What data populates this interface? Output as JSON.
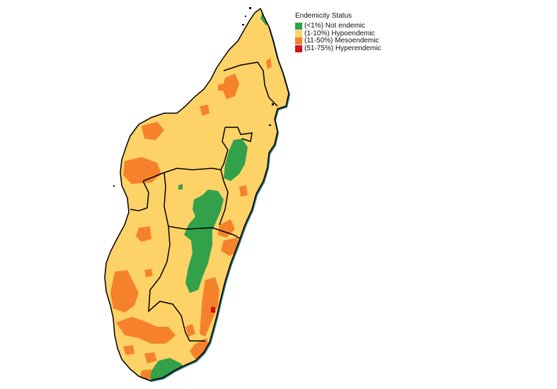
{
  "map": {
    "subject": "Madagascar",
    "colors": {
      "not_endemic": "#33a04a",
      "hypoendemic": "#fdd267",
      "mesoendemic": "#f5822a",
      "hyperendemic": "#d50f1c",
      "border": "#000000",
      "coast_shadow": "#2b6e7a"
    }
  },
  "legend": {
    "title": "Endemicity Status",
    "items": [
      {
        "label": "(<1%) Not endemic",
        "color": "#33a04a"
      },
      {
        "label": "(1-10%) Hypoendemic",
        "color": "#fdd267"
      },
      {
        "label": "(11-50%) Mesoendemic",
        "color": "#f5822a"
      },
      {
        "label": "(51-75%) Hyperendemic",
        "color": "#d50f1c"
      }
    ]
  }
}
